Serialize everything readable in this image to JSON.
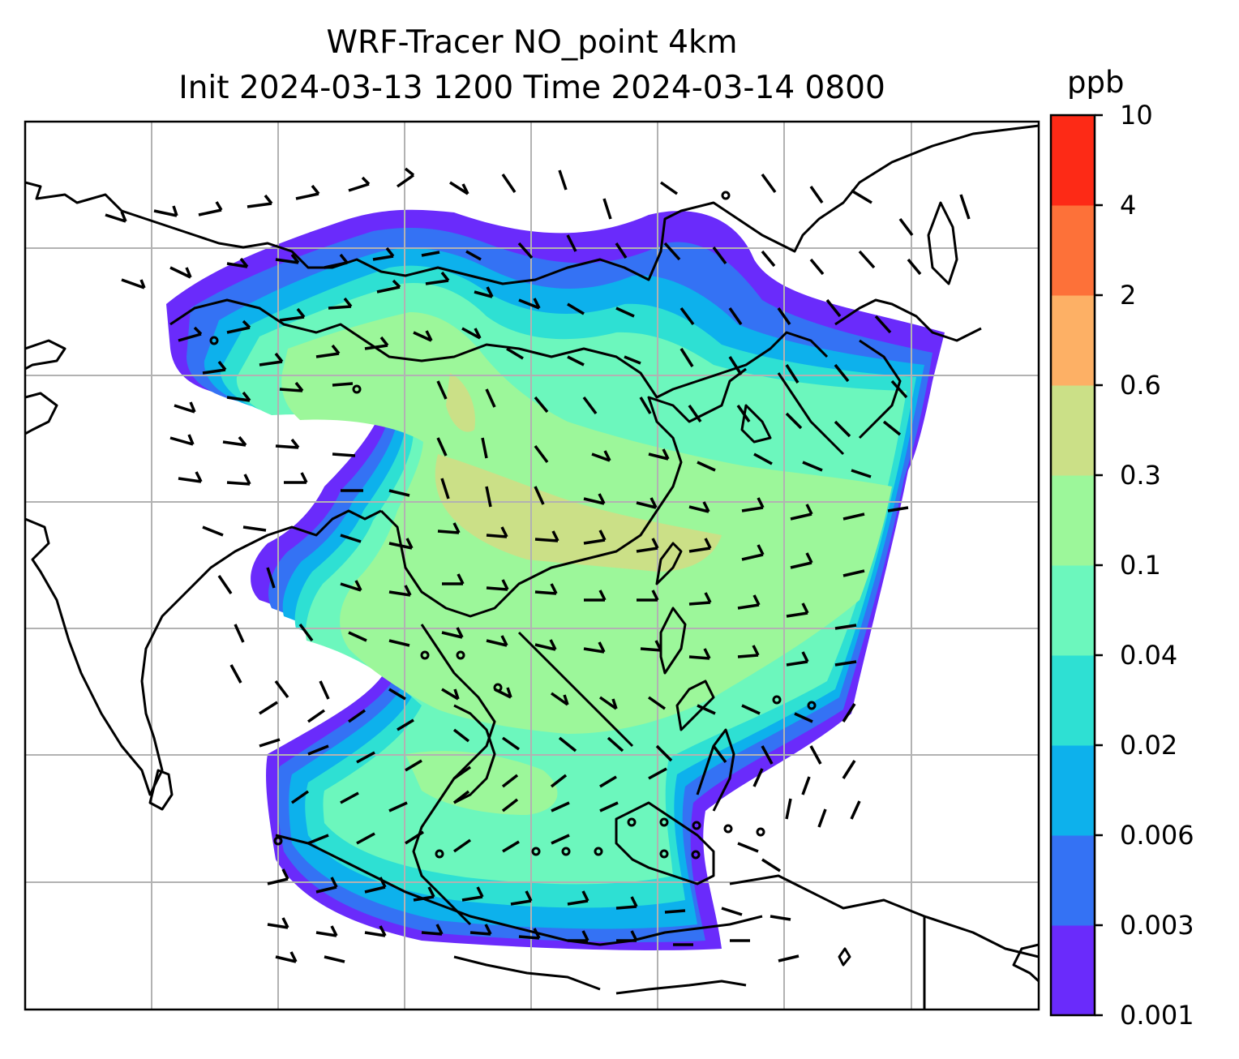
{
  "title": {
    "line1": "WRF-Tracer NO_point 4km",
    "line2": "Init 2024-03-13 1200 Time 2024-03-14 0800"
  },
  "colorbar": {
    "unit": "ppb",
    "levels": [
      "0.001",
      "0.003",
      "0.006",
      "0.02",
      "0.04",
      "0.1",
      "0.3",
      "0.6",
      "2",
      "4",
      "10"
    ],
    "colors": [
      "#6a2bfb",
      "#3472f4",
      "#0db1ec",
      "#2ee0d3",
      "#6cf7bd",
      "#9cf79a",
      "#cbe087",
      "#fdb065",
      "#fd7139",
      "#fd2a16"
    ]
  },
  "map": {
    "type": "concentration-field-with-wind-barbs",
    "region": "East and Southeast Asia",
    "gridlines": true,
    "coastlines": true,
    "wind_barbs": true,
    "colors": {
      "coast": "#000000",
      "grid": "#b2b2b2"
    }
  }
}
